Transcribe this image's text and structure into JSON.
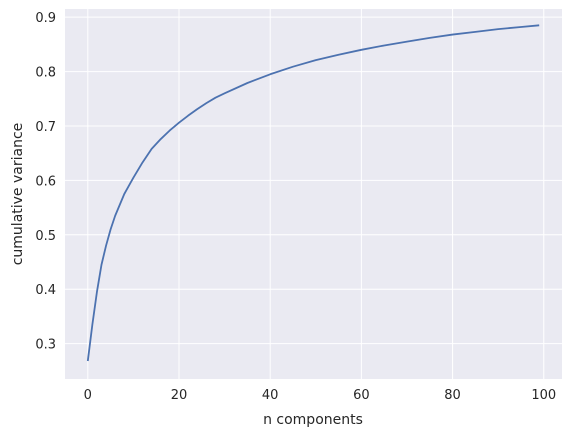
{
  "chart_data": {
    "type": "line",
    "title": "",
    "xlabel": "n components",
    "ylabel": "cumulative variance",
    "xlim": [
      -5,
      104
    ],
    "ylim": [
      0.235,
      0.915
    ],
    "xticks": [
      0,
      20,
      40,
      60,
      80,
      100
    ],
    "yticks": [
      0.3,
      0.4,
      0.5,
      0.6,
      0.7,
      0.8,
      0.9
    ],
    "xtick_labels": [
      "0",
      "20",
      "40",
      "60",
      "80",
      "100"
    ],
    "ytick_labels": [
      "0.3",
      "0.4",
      "0.5",
      "0.6",
      "0.7",
      "0.8",
      "0.9"
    ],
    "grid": true,
    "background": "#eaeaf2",
    "grid_color": "#ffffff",
    "line_color": "#4c72b0",
    "series": [
      {
        "x": [
          0,
          1,
          2,
          3,
          4,
          5,
          6,
          7,
          8,
          9,
          10,
          12,
          14,
          16,
          18,
          20,
          22,
          24,
          26,
          28,
          30,
          35,
          40,
          45,
          50,
          55,
          60,
          65,
          70,
          75,
          80,
          85,
          90,
          95,
          99
        ],
        "values": [
          0.268,
          0.335,
          0.395,
          0.445,
          0.48,
          0.51,
          0.535,
          0.555,
          0.575,
          0.59,
          0.605,
          0.633,
          0.658,
          0.676,
          0.692,
          0.706,
          0.719,
          0.731,
          0.742,
          0.752,
          0.76,
          0.779,
          0.795,
          0.809,
          0.821,
          0.831,
          0.84,
          0.848,
          0.855,
          0.862,
          0.868,
          0.873,
          0.878,
          0.882,
          0.885
        ]
      }
    ]
  }
}
